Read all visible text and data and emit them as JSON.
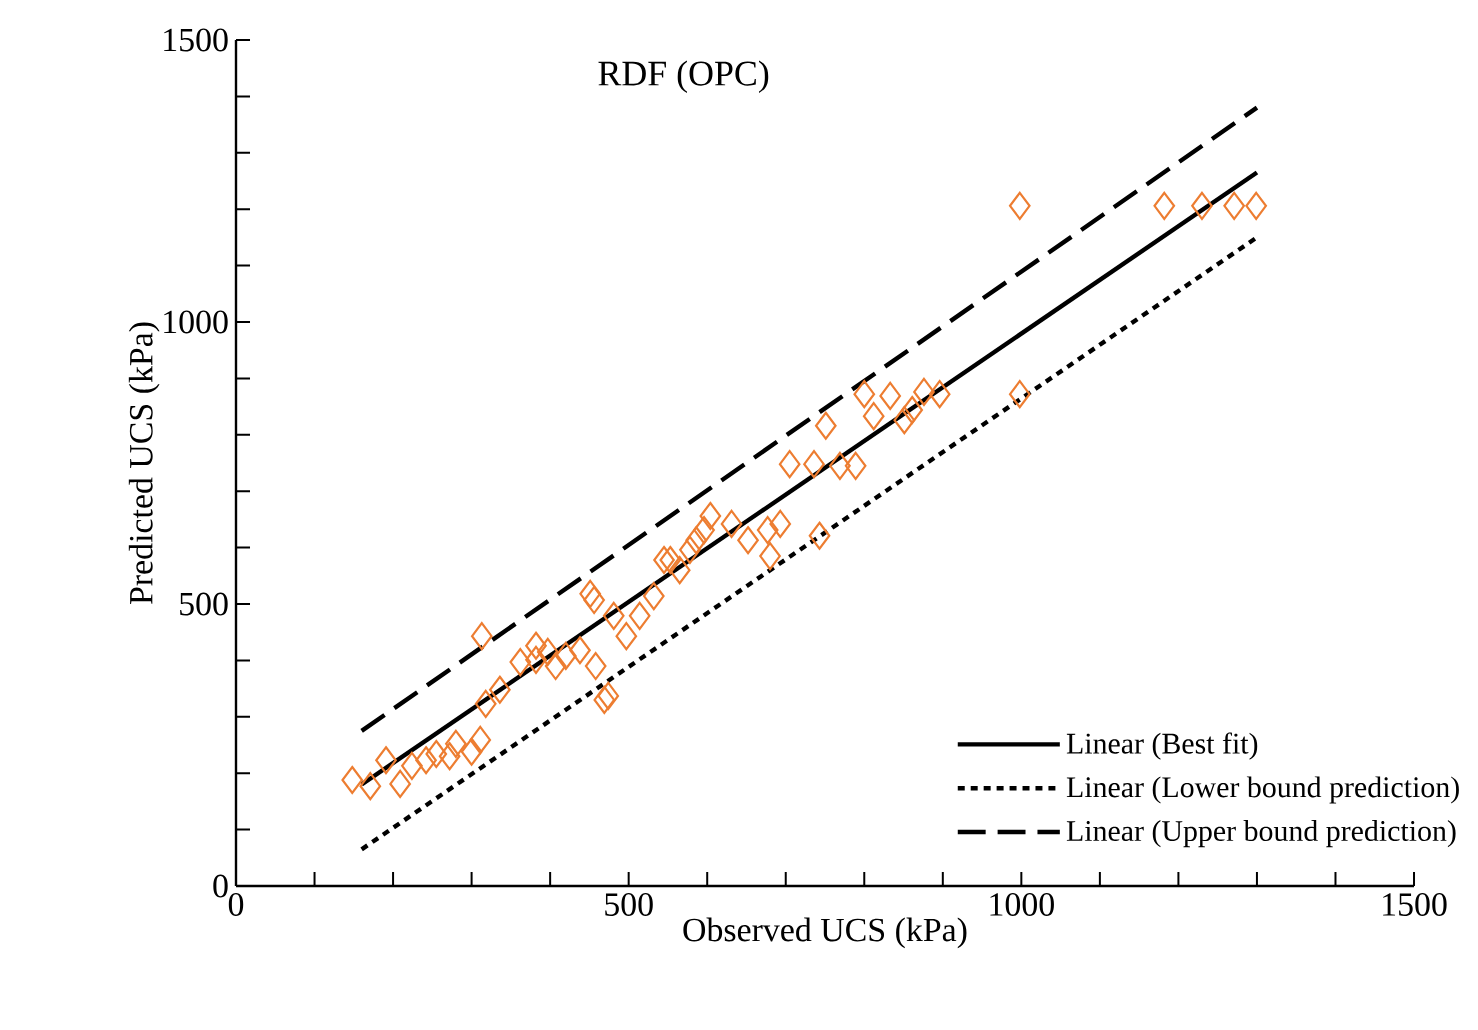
{
  "chart_data": {
    "type": "scatter",
    "title": "RDF (OPC)",
    "xlabel": "Observed UCS (kPa)",
    "ylabel": "Predicted UCS (kPa)",
    "xlim": [
      0,
      1500
    ],
    "ylim": [
      0,
      1500
    ],
    "xticks": [
      0,
      500,
      1000,
      1500
    ],
    "yticks": [
      0,
      500,
      1000,
      1500
    ],
    "legend": "bottom right",
    "grid": false,
    "series": [
      {
        "marker": "diamond",
        "color": "#ed7d31",
        "x": [
          148,
          171,
          191,
          209,
          224,
          242,
          272,
          300,
          311,
          280,
          255,
          318,
          313,
          336,
          362,
          382,
          397,
          382,
          407,
          420,
          438,
          458,
          469,
          451,
          456,
          474,
          481,
          497,
          514,
          532,
          545,
          553,
          565,
          578,
          586,
          604,
          596,
          631,
          652,
          677,
          680,
          693,
          705,
          736,
          743,
          751,
          769,
          789,
          800,
          812,
          833,
          851,
          861,
          876,
          896,
          998,
          998,
          1182,
          1230,
          1271,
          1299
        ],
        "values": [
          188,
          177,
          223,
          181,
          213,
          223,
          230,
          238,
          259,
          252,
          234,
          323,
          443,
          348,
          397,
          401,
          415,
          426,
          390,
          408,
          418,
          390,
          330,
          518,
          507,
          337,
          479,
          443,
          479,
          514,
          578,
          578,
          560,
          596,
          613,
          656,
          631,
          642,
          613,
          631,
          585,
          642,
          748,
          748,
          621,
          816,
          745,
          745,
          872,
          833,
          869,
          826,
          844,
          876,
          872,
          872,
          1206,
          1206,
          1206,
          1206,
          1206
        ]
      },
      {
        "type": "line",
        "name": "Linear (Best fit)",
        "color": "#000000",
        "line_style": "solid",
        "x": [
          160,
          1300
        ],
        "values": [
          180,
          1265
        ]
      },
      {
        "type": "line",
        "name": "Linear (Lower bound prediction)",
        "color": "#000000",
        "line_style": "dotted",
        "x": [
          160,
          1300
        ],
        "values": [
          65,
          1150
        ]
      },
      {
        "type": "line",
        "name": "Linear (Upper bound prediction)",
        "color": "#000000",
        "line_style": "dashed",
        "x": [
          160,
          1300
        ],
        "values": [
          275,
          1380
        ]
      }
    ]
  }
}
